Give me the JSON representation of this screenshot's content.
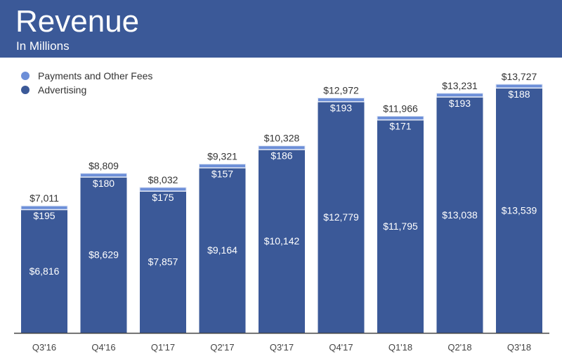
{
  "chart_data": {
    "type": "bar",
    "stacked": true,
    "title": "Revenue",
    "subtitle": "In Millions",
    "categories": [
      "Q3'16",
      "Q4'16",
      "Q1'17",
      "Q2'17",
      "Q3'17",
      "Q4'17",
      "Q1'18",
      "Q2'18",
      "Q3'18"
    ],
    "series": [
      {
        "name": "Advertising",
        "color": "#3b5998",
        "values": [
          6816,
          8629,
          7857,
          9164,
          10142,
          12779,
          11795,
          13038,
          13539
        ],
        "labels": [
          "$6,816",
          "$8,629",
          "$7,857",
          "$9,164",
          "$10,142",
          "$12,779",
          "$11,795",
          "$13,038",
          "$13,539"
        ]
      },
      {
        "name": "Payments and Other Fees",
        "color": "#6d8fd8",
        "values": [
          195,
          180,
          175,
          157,
          186,
          193,
          171,
          193,
          188
        ],
        "labels": [
          "$195",
          "$180",
          "$175",
          "$157",
          "$186",
          "$193",
          "$171",
          "$193",
          "$188"
        ]
      }
    ],
    "totals": [
      "$7,011",
      "$8,809",
      "$8,032",
      "$9,321",
      "$10,328",
      "$12,972",
      "$11,966",
      "$13,231",
      "$13,727"
    ],
    "total_values": [
      7011,
      8809,
      8032,
      9321,
      10328,
      12972,
      11966,
      13231,
      13727
    ],
    "ylim": [
      0,
      14000
    ],
    "grid": false,
    "legend_position": "top-left"
  }
}
